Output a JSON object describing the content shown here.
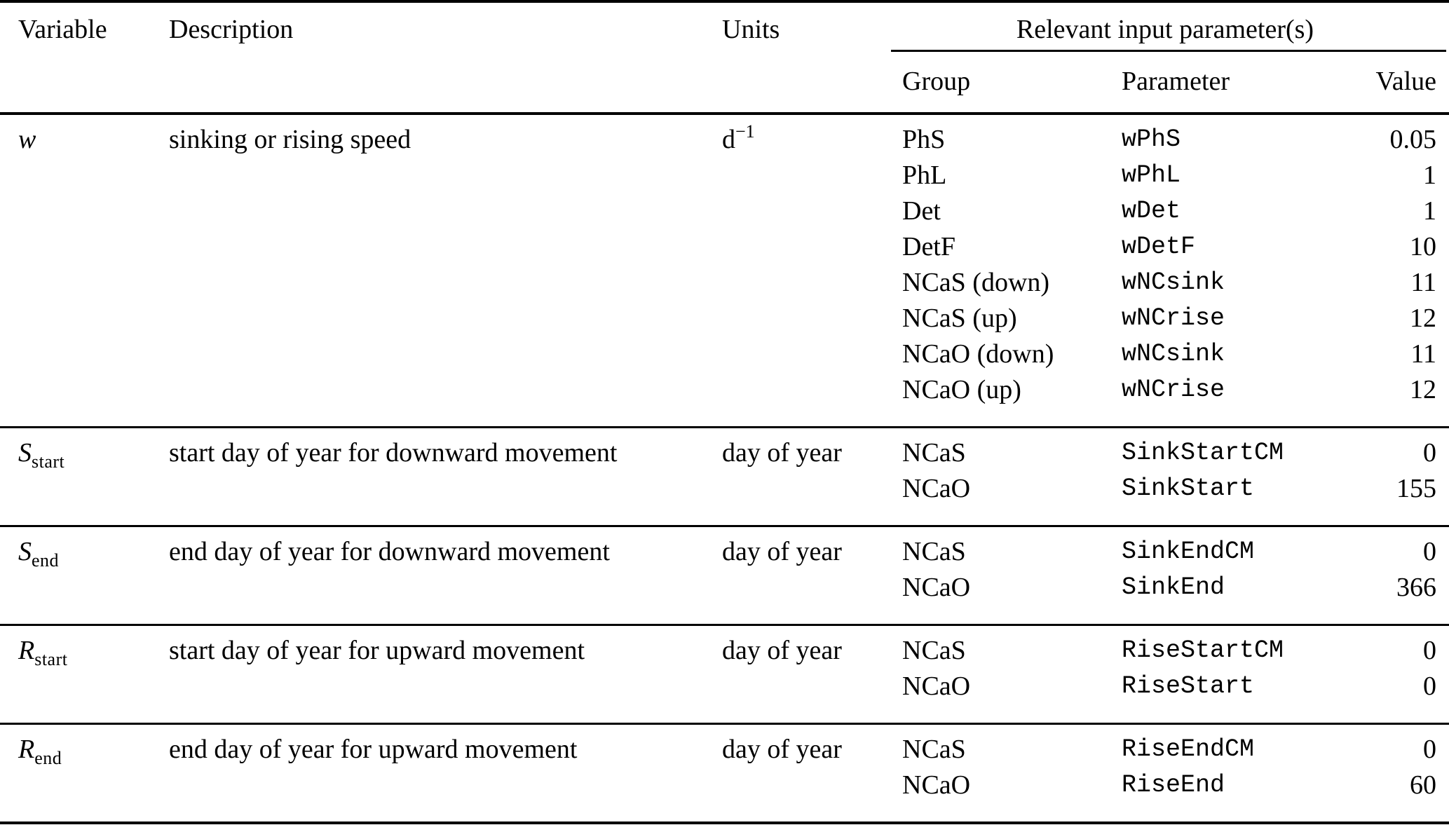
{
  "table": {
    "headers": {
      "variable": "Variable",
      "description": "Description",
      "units": "Units",
      "relevant": "Relevant input parameter(s)",
      "group": "Group",
      "parameter": "Parameter",
      "value": "Value"
    },
    "rows": [
      {
        "var_base": "w",
        "var_sub": "",
        "description": "sinking or rising speed",
        "units": "d",
        "units_sup": "−1",
        "entries": [
          {
            "group": "PhS",
            "param": "wPhS",
            "value": "0.05"
          },
          {
            "group": "PhL",
            "param": "wPhL",
            "value": "1"
          },
          {
            "group": "Det",
            "param": "wDet",
            "value": "1"
          },
          {
            "group": "DetF",
            "param": "wDetF",
            "value": "10"
          },
          {
            "group": "NCaS (down)",
            "param": "wNCsink",
            "value": "11"
          },
          {
            "group": "NCaS (up)",
            "param": "wNCrise",
            "value": "12"
          },
          {
            "group": "NCaO (down)",
            "param": "wNCsink",
            "value": "11"
          },
          {
            "group": "NCaO (up)",
            "param": "wNCrise",
            "value": "12"
          }
        ]
      },
      {
        "var_base": "S",
        "var_sub": "start",
        "description": "start day of year for downward movement",
        "units": "day of year",
        "units_sup": "",
        "entries": [
          {
            "group": "NCaS",
            "param": "SinkStartCM",
            "value": "0"
          },
          {
            "group": "NCaO",
            "param": "SinkStart",
            "value": "155"
          }
        ]
      },
      {
        "var_base": "S",
        "var_sub": "end",
        "description": "end day of year for downward movement",
        "units": "day of year",
        "units_sup": "",
        "entries": [
          {
            "group": "NCaS",
            "param": "SinkEndCM",
            "value": "0"
          },
          {
            "group": "NCaO",
            "param": "SinkEnd",
            "value": "366"
          }
        ]
      },
      {
        "var_base": "R",
        "var_sub": "start",
        "description": "start day of year for upward movement",
        "units": "day of year",
        "units_sup": "",
        "entries": [
          {
            "group": "NCaS",
            "param": "RiseStartCM",
            "value": "0"
          },
          {
            "group": "NCaO",
            "param": "RiseStart",
            "value": "0"
          }
        ]
      },
      {
        "var_base": "R",
        "var_sub": "end",
        "description": "end day of year for upward movement",
        "units": "day of year",
        "units_sup": "",
        "entries": [
          {
            "group": "NCaS",
            "param": "RiseEndCM",
            "value": "0"
          },
          {
            "group": "NCaO",
            "param": "RiseEnd",
            "value": "60"
          }
        ]
      }
    ]
  }
}
